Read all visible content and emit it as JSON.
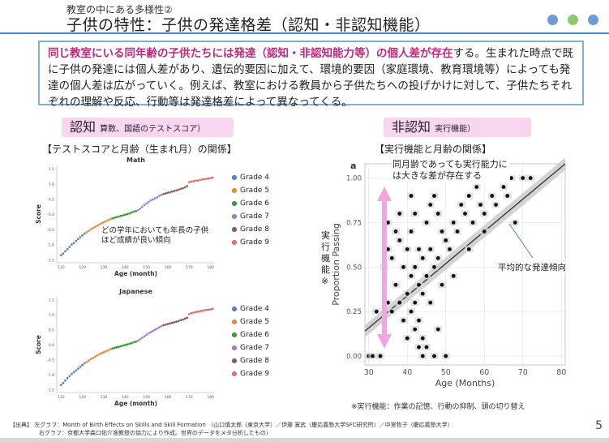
{
  "header": {
    "subtitle": "教室の中にある多様性②",
    "title": "子供の特性：子供の発達格差（認知・非認知機能）",
    "dots": [
      "#6f9ad6",
      "#8dc86a",
      "#6f9ad6"
    ]
  },
  "summary": {
    "highlight": "同じ教室にいる同年齢の子供たちには発達（認知・非認知能力等）の個人差が存在",
    "text": "する。生まれた時点で既に子供の発達には個人差があり、遺伝的要因に加えて、環境的要因（家庭環境、教育環境等）によっても発達の個人差は広がっていく。例えば、教室における教員から子供たちへの投げかけに対して、子供たちそれぞれの理解や反応、行動等は発達格差によって異なってくる。"
  },
  "left": {
    "pill_main": "認知",
    "pill_sub": "算数、国語のテストスコア）",
    "section": "【テストスコアと月齢（生まれ月）の関係】",
    "annotation": "どの学年においても年長の子供ほど成績が良い傾向"
  },
  "right": {
    "pill_main": "非認知",
    "pill_sub": "実行機能）",
    "section": "【実行機能と月齢の関係】",
    "annotation_top": "同月齢であっても実行能力には大きな差が存在する",
    "annotation_line": "平均的な発達傾向",
    "vertical_label": "実行機能※",
    "footnote": "※実行機能：作業の記憶、行動の抑制、頭の切り替え"
  },
  "footer": {
    "line1": "【出典】 左グラフ：Month of Birth Effects on Skills and Skill Formation （山口慎太郎（東京大学）／伊藤 寛武（慶応義塾大学SFC研究所）／中室牧子（慶応義塾大学）",
    "line2": "右グラフ：京都大学森口佑介准教授の協力により作成。世界のデータをメタ分析したもの）",
    "page": "5"
  },
  "chart_data": [
    {
      "type": "scatter",
      "title": "Math",
      "xlabel": "Age (month)",
      "ylabel": "Score",
      "xlim": [
        108,
        182
      ],
      "ylim": [
        -1.6,
        1.6
      ],
      "xticks": [
        110,
        120,
        130,
        140,
        150,
        160,
        170,
        180
      ],
      "yticks": [
        -1.5,
        -1.0,
        -0.5,
        0.0,
        0.5,
        1.0,
        1.5
      ],
      "series": [
        {
          "name": "Grade 4",
          "color": "#5b7fc1",
          "x": [
            110,
            111,
            112,
            113,
            114,
            115,
            116,
            117,
            118,
            119,
            120,
            121
          ],
          "y": [
            -1.35,
            -1.3,
            -1.22,
            -1.15,
            -1.08,
            -1.0,
            -0.95,
            -0.88,
            -0.82,
            -0.76,
            -0.7,
            -0.64
          ]
        },
        {
          "name": "Grade 5",
          "color": "#e8893a",
          "x": [
            122,
            123,
            124,
            125,
            126,
            127,
            128,
            129,
            130,
            131,
            132,
            133
          ],
          "y": [
            -0.6,
            -0.55,
            -0.5,
            -0.46,
            -0.42,
            -0.38,
            -0.34,
            -0.3,
            -0.27,
            -0.24,
            -0.2,
            -0.17
          ]
        },
        {
          "name": "Grade 6",
          "color": "#3a9a3a",
          "x": [
            134,
            135,
            136,
            137,
            138,
            139,
            140,
            141,
            142,
            143,
            144,
            145
          ],
          "y": [
            -0.14,
            -0.12,
            -0.1,
            -0.08,
            -0.06,
            -0.04,
            -0.02,
            0.0,
            0.02,
            0.05,
            0.08,
            0.1
          ]
        },
        {
          "name": "Grade 7",
          "color": "#9e7fc0",
          "x": [
            146,
            147,
            148,
            149,
            150,
            151,
            152,
            153,
            154,
            155,
            156,
            157
          ],
          "y": [
            0.13,
            0.18,
            0.24,
            0.3,
            0.35,
            0.4,
            0.45,
            0.48,
            0.52,
            0.55,
            0.6,
            0.63
          ]
        },
        {
          "name": "Grade 8",
          "color": "#8a6050",
          "x": [
            158,
            159,
            160,
            161,
            162,
            163,
            164,
            165,
            166,
            167,
            168,
            169
          ],
          "y": [
            0.66,
            0.68,
            0.7,
            0.72,
            0.74,
            0.76,
            0.78,
            0.8,
            0.83,
            0.85,
            0.88,
            0.92
          ]
        },
        {
          "name": "Grade 9",
          "color": "#e07070",
          "x": [
            170,
            171,
            172,
            173,
            174,
            175,
            176,
            177,
            178,
            179,
            180,
            181
          ],
          "y": [
            1.05,
            1.07,
            1.08,
            1.1,
            1.1,
            1.12,
            1.14,
            1.15,
            1.16,
            1.17,
            1.18,
            1.2
          ]
        }
      ]
    },
    {
      "type": "scatter",
      "title": "Japanese",
      "xlabel": "Age (month)",
      "ylabel": "Score",
      "xlim": [
        108,
        182
      ],
      "ylim": [
        -1.6,
        1.6
      ],
      "xticks": [
        110,
        120,
        130,
        140,
        150,
        160,
        170,
        180
      ],
      "yticks": [
        -1.5,
        -1.0,
        -0.5,
        0.0,
        0.5,
        1.0,
        1.5
      ],
      "series": [
        {
          "name": "Grade 4",
          "color": "#5b7fc1",
          "x": [
            110,
            111,
            112,
            113,
            114,
            115,
            116,
            117,
            118,
            119,
            120,
            121
          ],
          "y": [
            -1.35,
            -1.28,
            -1.2,
            -1.12,
            -1.05,
            -0.98,
            -0.92,
            -0.86,
            -0.8,
            -0.74,
            -0.68,
            -0.62
          ]
        },
        {
          "name": "Grade 5",
          "color": "#e8893a",
          "x": [
            122,
            123,
            124,
            125,
            126,
            127,
            128,
            129,
            130,
            131,
            132,
            133
          ],
          "y": [
            -0.58,
            -0.53,
            -0.48,
            -0.44,
            -0.4,
            -0.36,
            -0.32,
            -0.28,
            -0.25,
            -0.22,
            -0.19,
            -0.16
          ]
        },
        {
          "name": "Grade 6",
          "color": "#3a9a3a",
          "x": [
            134,
            135,
            136,
            137,
            138,
            139,
            140,
            141,
            142,
            143,
            144,
            145
          ],
          "y": [
            -0.13,
            -0.11,
            -0.09,
            -0.07,
            -0.05,
            -0.03,
            -0.01,
            0.01,
            0.03,
            0.05,
            0.08,
            0.1
          ]
        },
        {
          "name": "Grade 7",
          "color": "#9e7fc0",
          "x": [
            146,
            147,
            148,
            149,
            150,
            151,
            152,
            153,
            154,
            155,
            156,
            157
          ],
          "y": [
            0.13,
            0.18,
            0.23,
            0.28,
            0.33,
            0.38,
            0.42,
            0.46,
            0.5,
            0.54,
            0.58,
            0.62
          ]
        },
        {
          "name": "Grade 8",
          "color": "#8a6050",
          "x": [
            158,
            159,
            160,
            161,
            162,
            163,
            164,
            165,
            166,
            167,
            168,
            169
          ],
          "y": [
            0.65,
            0.67,
            0.69,
            0.71,
            0.73,
            0.75,
            0.77,
            0.79,
            0.82,
            0.84,
            0.87,
            0.9
          ]
        },
        {
          "name": "Grade 9",
          "color": "#e07070",
          "x": [
            170,
            171,
            172,
            173,
            174,
            175,
            176,
            177,
            178,
            179,
            180,
            181
          ],
          "y": [
            1.02,
            1.05,
            1.07,
            1.09,
            1.1,
            1.12,
            1.13,
            1.15,
            1.16,
            1.17,
            1.18,
            1.2
          ]
        }
      ]
    },
    {
      "type": "scatter",
      "panel_label": "a",
      "xlabel": "Age (Months)",
      "ylabel": "Proportion Passing",
      "xlim": [
        29,
        81
      ],
      "ylim": [
        -0.05,
        1.08
      ],
      "xticks": [
        30,
        40,
        50,
        60,
        70,
        80
      ],
      "yticks": [
        0.0,
        0.25,
        0.5,
        0.75,
        1.0
      ],
      "ytick_labels": [
        "0.00",
        "0.25",
        "0.50",
        "0.75",
        "1.00"
      ],
      "trend": {
        "x": [
          29,
          81
        ],
        "y": [
          0.14,
          1.08
        ]
      },
      "points_x": [
        30,
        31,
        32,
        33,
        34,
        35,
        35,
        36,
        36,
        37,
        37,
        38,
        38,
        39,
        39,
        40,
        40,
        40,
        41,
        41,
        41,
        42,
        42,
        42,
        42,
        43,
        43,
        43,
        44,
        44,
        44,
        45,
        45,
        46,
        46,
        47,
        47,
        48,
        48,
        49,
        49,
        50,
        51,
        52,
        53,
        54,
        55,
        56,
        57,
        58,
        59,
        60,
        61,
        62,
        63,
        64,
        65,
        66,
        67,
        68,
        70,
        72,
        45,
        48,
        52,
        56,
        60,
        44,
        47,
        50,
        41,
        43,
        46,
        38,
        35
      ],
      "points_y": [
        0.0,
        0.0,
        0.25,
        0.0,
        0.5,
        0.3,
        0.6,
        0.25,
        0.55,
        0.4,
        0.7,
        0.3,
        0.65,
        0.2,
        0.5,
        0.1,
        0.35,
        0.6,
        0.25,
        0.45,
        0.7,
        0.15,
        0.3,
        0.5,
        0.8,
        0.2,
        0.4,
        0.6,
        0.1,
        0.35,
        0.55,
        0.45,
        0.75,
        0.3,
        0.6,
        0.5,
        0.9,
        0.55,
        0.8,
        0.4,
        0.7,
        0.65,
        0.6,
        0.75,
        0.7,
        0.85,
        0.8,
        0.9,
        0.75,
        0.95,
        0.85,
        0.8,
        1.0,
        0.9,
        0.85,
        1.0,
        0.95,
        0.9,
        1.0,
        0.75,
        1.0,
        1.0,
        0.05,
        0.15,
        0.45,
        0.6,
        0.7,
        0.0,
        0.0,
        0.0,
        0.9,
        0.05,
        0.85,
        0.8,
        0.75
      ]
    }
  ]
}
